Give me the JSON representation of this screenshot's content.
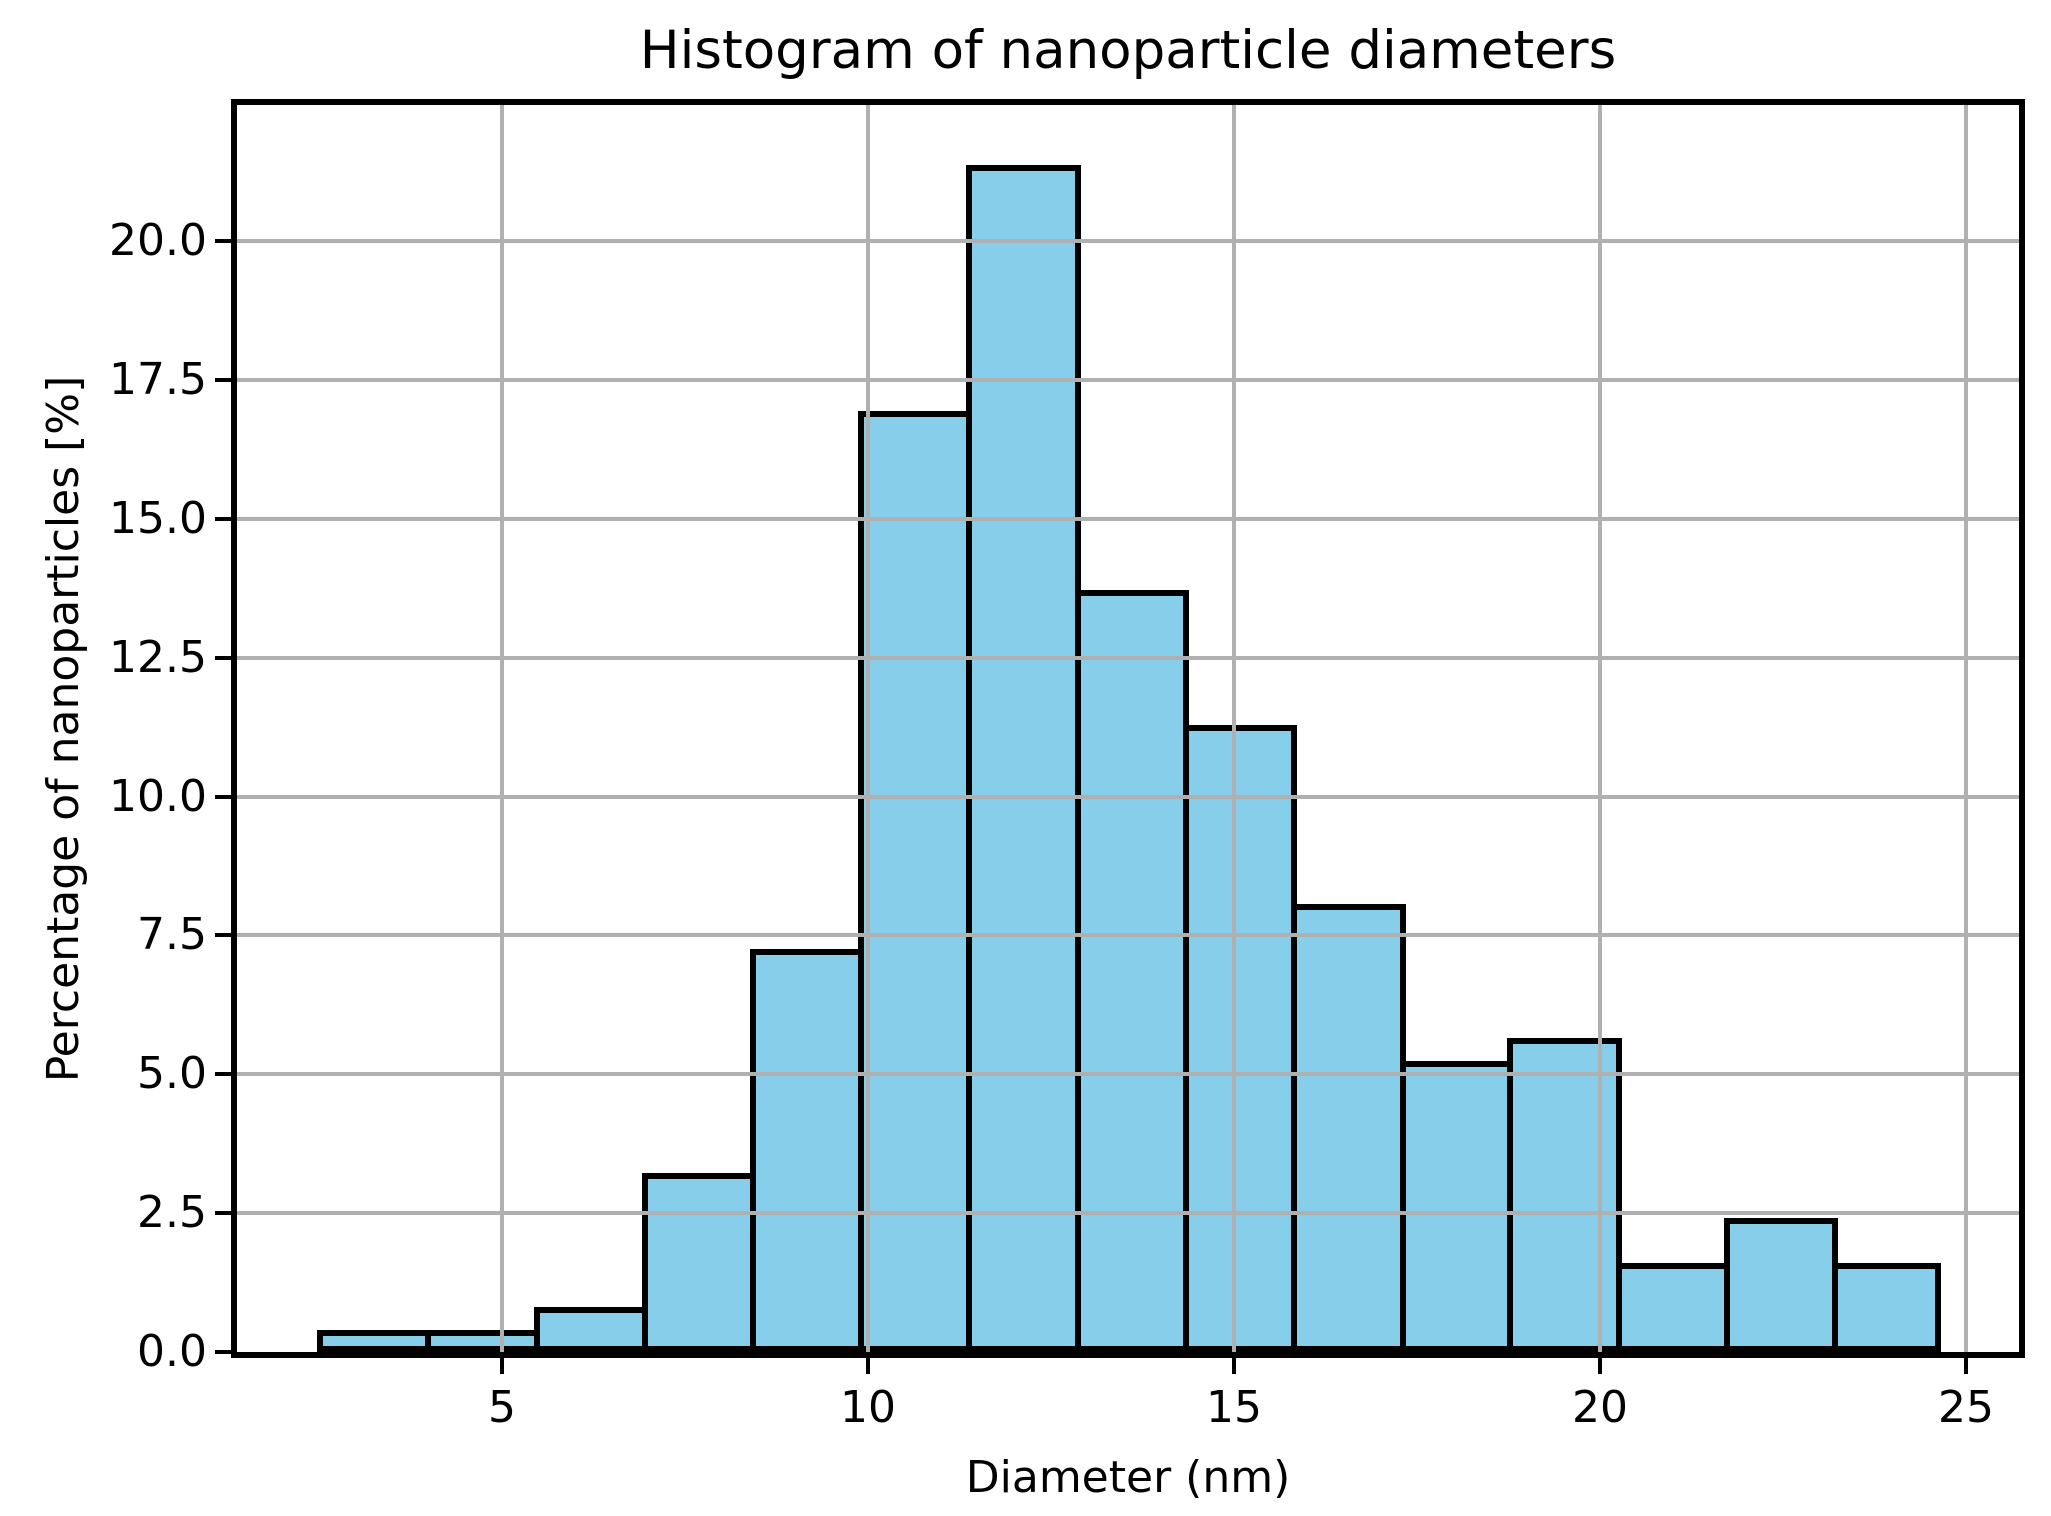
{
  "title": "Histogram of nanoparticle diameters",
  "xlabel": "Diameter (nm)",
  "ylabel": "Percentage of nanoparticles [%]",
  "colors": {
    "bar_fill": "#87ceeb",
    "bar_edge": "#000000",
    "grid": "#b0b0b0",
    "axis": "#000000",
    "background": "#ffffff",
    "text": "#000000"
  },
  "chart_data": {
    "type": "bar",
    "subtype": "histogram",
    "title": "Histogram of nanoparticle diameters",
    "xlabel": "Diameter (nm)",
    "ylabel": "Percentage of nanoparticles [%]",
    "bin_edges": [
      2.47,
      3.95,
      5.43,
      6.91,
      8.39,
      9.86,
      11.34,
      12.82,
      14.3,
      15.78,
      17.26,
      18.73,
      20.21,
      21.69,
      23.17,
      24.65
    ],
    "values": [
      0.4,
      0.4,
      0.81,
      3.23,
      7.26,
      16.94,
      21.37,
      13.71,
      11.29,
      8.06,
      5.24,
      5.65,
      1.61,
      2.42,
      1.61
    ],
    "xticks": [
      {
        "value": 5,
        "label": "5"
      },
      {
        "value": 10,
        "label": "10"
      },
      {
        "value": 15,
        "label": "15"
      },
      {
        "value": 20,
        "label": "20"
      },
      {
        "value": 25,
        "label": "25"
      }
    ],
    "yticks": [
      {
        "value": 0.0,
        "label": "0.0"
      },
      {
        "value": 2.5,
        "label": "2.5"
      },
      {
        "value": 5.0,
        "label": "5.0"
      },
      {
        "value": 7.5,
        "label": "7.5"
      },
      {
        "value": 10.0,
        "label": "10.0"
      },
      {
        "value": 12.5,
        "label": "12.5"
      },
      {
        "value": 15.0,
        "label": "15.0"
      },
      {
        "value": 17.5,
        "label": "17.5"
      },
      {
        "value": 20.0,
        "label": "20.0"
      }
    ],
    "xlim": [
      1.38,
      25.72
    ],
    "ylim": [
      0,
      22.45
    ],
    "grid": true,
    "grid_on_top": true,
    "legend": null
  }
}
